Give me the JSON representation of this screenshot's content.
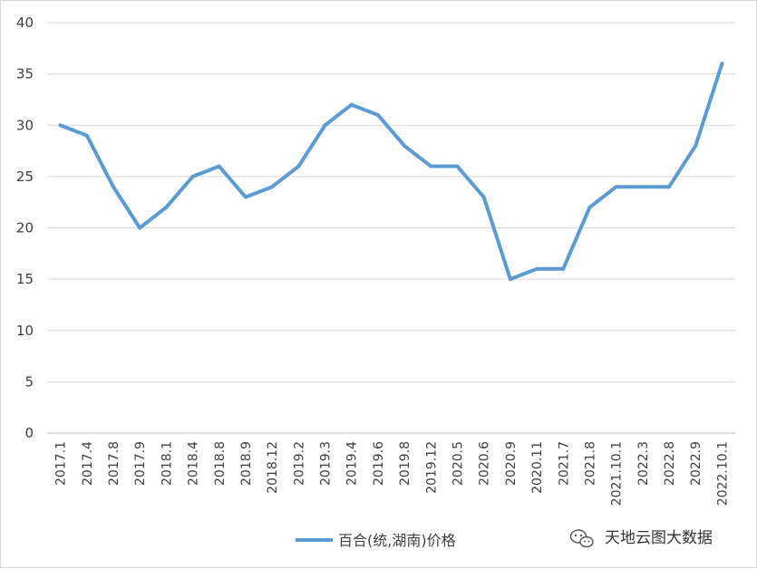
{
  "chart_data": {
    "type": "line",
    "title": "",
    "xlabel": "",
    "ylabel": "",
    "ylim": [
      0,
      40
    ],
    "yticks": [
      0,
      5,
      10,
      15,
      20,
      25,
      30,
      35,
      40
    ],
    "grid": true,
    "legend_position": "bottom",
    "categories": [
      "2017.1",
      "2017.4",
      "2017.8",
      "2017.9",
      "2018.1",
      "2018.4",
      "2018.8",
      "2018.9",
      "2018.12",
      "2019.2",
      "2019.3",
      "2019.4",
      "2019.6",
      "2019.8",
      "2019.12",
      "2020.5",
      "2020.6",
      "2020.9",
      "2020.11",
      "2021.7",
      "2021.8",
      "2021.10.1",
      "2022.3",
      "2022.8",
      "2022.9",
      "2022.10.1"
    ],
    "series": [
      {
        "name": "百合(统,湖南)价格",
        "color": "#5B9BD5",
        "values": [
          30,
          29,
          24,
          20,
          22,
          25,
          26,
          23,
          24,
          26,
          30,
          32,
          31,
          28,
          26,
          26,
          23,
          15,
          16,
          16,
          22,
          24,
          24,
          24,
          28,
          36
        ]
      }
    ]
  },
  "watermark": {
    "text": "天地云图大数据",
    "icon": "wechat-icon"
  }
}
